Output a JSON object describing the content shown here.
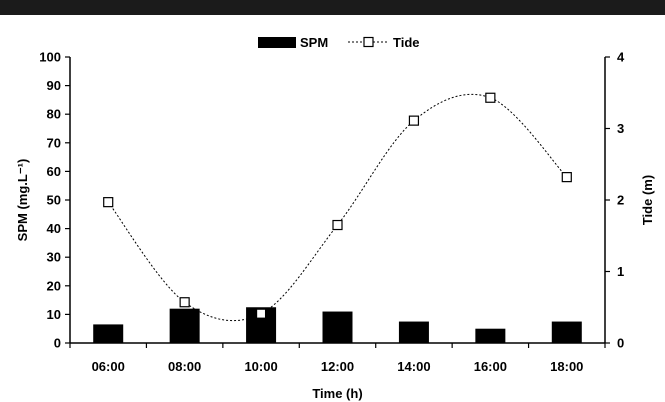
{
  "colors": {
    "background": "#ffffff",
    "top_band": "#1b1b1b",
    "bar": "#000000",
    "line": "#000000",
    "marker_fill": "#ffffff"
  },
  "chart_data": {
    "type": "bar",
    "title": "",
    "categories": [
      "06:00",
      "08:00",
      "10:00",
      "12:00",
      "14:00",
      "16:00",
      "18:00"
    ],
    "xlabel": "Time (h)",
    "ylabel": "SPM  (mg.L⁻¹)",
    "y2label": "Tide (m)",
    "ylim": [
      0,
      100
    ],
    "y2lim": [
      0,
      4
    ],
    "yticks": [
      "0",
      "10",
      "20",
      "30",
      "40",
      "50",
      "60",
      "70",
      "80",
      "90",
      "100"
    ],
    "y2ticks": [
      "0",
      "1",
      "2",
      "3",
      "4"
    ],
    "legend_position": "top-center",
    "grid": false,
    "series": [
      {
        "name": "SPM",
        "type": "bar",
        "axis": "left",
        "values": [
          6.5,
          12,
          12.5,
          11,
          7.5,
          5,
          7.5
        ]
      },
      {
        "name": "Tide",
        "type": "line",
        "axis": "right",
        "marker": "open-square",
        "line_style": "dotted-smooth",
        "x": [
          "06:00",
          "08:00",
          "10:00",
          "12:00",
          "14:00",
          "16:00",
          "18:00"
        ],
        "values": [
          1.97,
          0.57,
          0.41,
          1.65,
          3.11,
          3.43,
          2.32
        ]
      }
    ]
  }
}
